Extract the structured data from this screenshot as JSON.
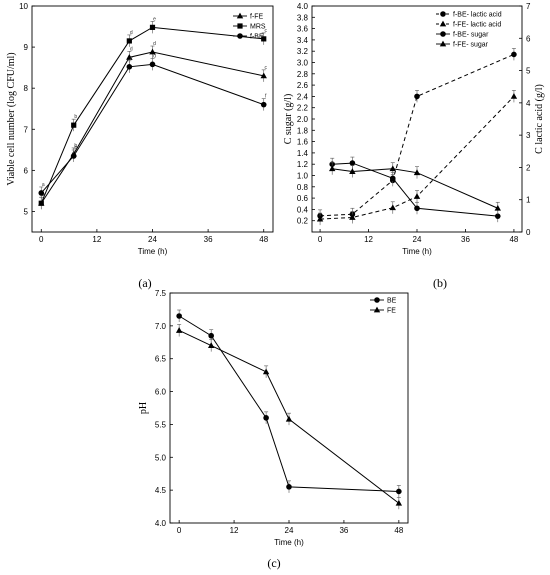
{
  "chart_data": [
    {
      "panel": "(a)",
      "type": "line",
      "xlabel": "Time (h)",
      "ylabel": "Viable cell number (log CFU/ml)",
      "xlim": [
        -2,
        50
      ],
      "ylim": [
        4.5,
        10
      ],
      "xticks": [
        0,
        12,
        24,
        36,
        48
      ],
      "yticks": [
        5,
        6,
        7,
        8,
        9,
        10
      ],
      "legend_position": "top-right",
      "series": [
        {
          "name": "f-FE",
          "marker": "triangle",
          "dashed": false,
          "x": [
            0,
            7,
            19,
            24,
            48
          ],
          "y": [
            5.2,
            6.4,
            8.75,
            8.88,
            8.3
          ],
          "labels": [
            "a",
            "b",
            "d",
            "d",
            "c"
          ]
        },
        {
          "name": "MRS",
          "marker": "square",
          "dashed": false,
          "x": [
            0,
            7,
            19,
            24,
            48
          ],
          "y": [
            5.2,
            7.1,
            9.15,
            9.48,
            9.2
          ],
          "labels": [
            "a",
            "b",
            "d",
            "e",
            "c"
          ]
        },
        {
          "name": "f-BE",
          "marker": "circle",
          "dashed": false,
          "x": [
            0,
            7,
            19,
            24,
            48
          ],
          "y": [
            5.45,
            6.35,
            8.52,
            8.58,
            7.6
          ],
          "labels": [
            "a",
            "b",
            "c",
            "d",
            "f"
          ]
        }
      ]
    },
    {
      "panel": "(b)",
      "type": "line",
      "xlabel": "Time (h)",
      "ylabel_left": "C sugar (g/l)",
      "ylabel_right": "C lactic acid (g/l)",
      "xlim": [
        -2,
        50
      ],
      "ylim_left": [
        0,
        4.0
      ],
      "ylim_right": [
        0,
        7
      ],
      "xticks": [
        0,
        12,
        24,
        36,
        48
      ],
      "yticks_left": [
        0.2,
        0.4,
        0.6,
        0.8,
        1.0,
        1.2,
        1.4,
        1.6,
        1.8,
        2.0,
        2.2,
        2.4,
        2.6,
        2.8,
        3.0,
        3.2,
        3.4,
        3.6,
        3.8,
        4.0
      ],
      "yticks_right": [
        0,
        1,
        2,
        3,
        4,
        5,
        6,
        7
      ],
      "legend_position": "top-right",
      "series": [
        {
          "name": "f-BE- lactic acid",
          "marker": "circle",
          "dashed": true,
          "axis": "right",
          "x": [
            0,
            8,
            18,
            24,
            48
          ],
          "y": [
            0.5,
            0.55,
            1.6,
            4.2,
            5.5
          ]
        },
        {
          "name": "f-FE- lactic acid",
          "marker": "triangle",
          "dashed": true,
          "axis": "right",
          "x": [
            0,
            8,
            18,
            24,
            48
          ],
          "y": [
            0.4,
            0.45,
            0.75,
            1.1,
            4.2
          ]
        },
        {
          "name": "f-BE- sugar",
          "marker": "circle",
          "dashed": false,
          "axis": "left",
          "x": [
            3,
            8,
            18,
            24,
            44
          ],
          "y": [
            1.2,
            1.22,
            0.95,
            0.42,
            0.28
          ]
        },
        {
          "name": "f-FE- sugar",
          "marker": "triangle",
          "dashed": false,
          "axis": "left",
          "x": [
            3,
            8,
            18,
            24,
            44
          ],
          "y": [
            1.12,
            1.07,
            1.12,
            1.05,
            0.42
          ]
        }
      ]
    },
    {
      "panel": "(c)",
      "type": "line",
      "xlabel": "Time (h)",
      "ylabel": "pH",
      "xlim": [
        -2,
        50
      ],
      "ylim": [
        4.0,
        7.5
      ],
      "xticks": [
        0,
        12,
        24,
        36,
        48
      ],
      "yticks": [
        4.0,
        4.5,
        5.0,
        5.5,
        6.0,
        6.5,
        7.0,
        7.5
      ],
      "legend_position": "top-right",
      "series": [
        {
          "name": "BE",
          "marker": "circle",
          "dashed": false,
          "x": [
            0,
            7,
            19,
            24,
            48
          ],
          "y": [
            7.15,
            6.85,
            5.6,
            4.55,
            4.48
          ]
        },
        {
          "name": "FE",
          "marker": "triangle",
          "dashed": false,
          "x": [
            0,
            7,
            19,
            24,
            48
          ],
          "y": [
            6.93,
            6.7,
            6.3,
            5.58,
            4.3
          ]
        }
      ]
    }
  ]
}
